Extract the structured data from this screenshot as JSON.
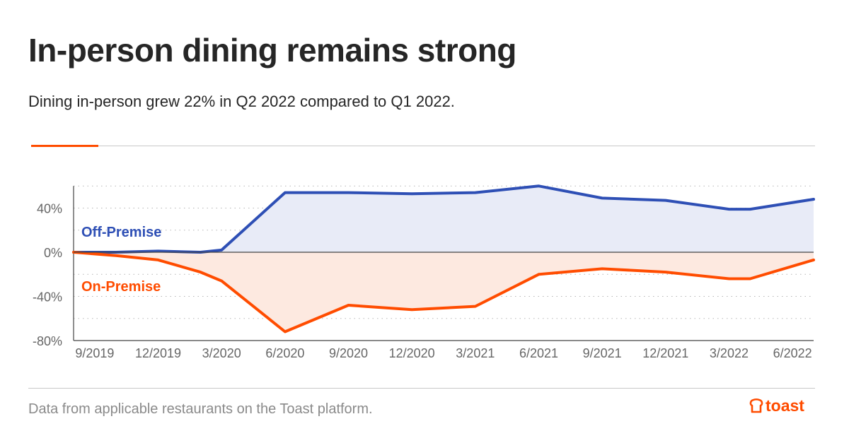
{
  "header": {
    "title": "In-person dining remains strong",
    "subtitle": "Dining in-person grew 22% in Q2 2022 compared to Q1 2022."
  },
  "footer": {
    "note": "Data from applicable restaurants on the Toast platform.",
    "brand": "toast",
    "brand_icon": "toast-bread-icon"
  },
  "colors": {
    "off_premise": "#2e4fb5",
    "on_premise": "#ff4c00",
    "off_fill": "#e8ebf7",
    "on_fill": "#fde9e0",
    "accent": "#ff4c00"
  },
  "chart_data": {
    "type": "area",
    "x": [
      "8/2019",
      "10/2019",
      "12/2019",
      "2/2020",
      "3/2020",
      "6/2020",
      "9/2020",
      "12/2020",
      "3/2021",
      "6/2021",
      "9/2021",
      "12/2021",
      "3/2022",
      "4/2022",
      "7/2022"
    ],
    "tick_labels": [
      "9/2019",
      "12/2019",
      "3/2020",
      "6/2020",
      "9/2020",
      "12/2020",
      "3/2021",
      "6/2021",
      "9/2021",
      "12/2021",
      "3/2022",
      "6/2022"
    ],
    "series": [
      {
        "name": "Off-Premise",
        "values": [
          0,
          0,
          1,
          0,
          2,
          54,
          54,
          53,
          54,
          60,
          49,
          47,
          39,
          39,
          48
        ]
      },
      {
        "name": "On-Premise",
        "values": [
          0,
          -3,
          -7,
          -18,
          -26,
          -72,
          -48,
          -52,
          -49,
          -20,
          -15,
          -18,
          -24,
          -24,
          -7
        ]
      }
    ],
    "y_ticks": [
      "40%",
      "0%",
      "-40%",
      "-80%"
    ],
    "ylim": [
      -80,
      60
    ],
    "grid": "dotted"
  }
}
